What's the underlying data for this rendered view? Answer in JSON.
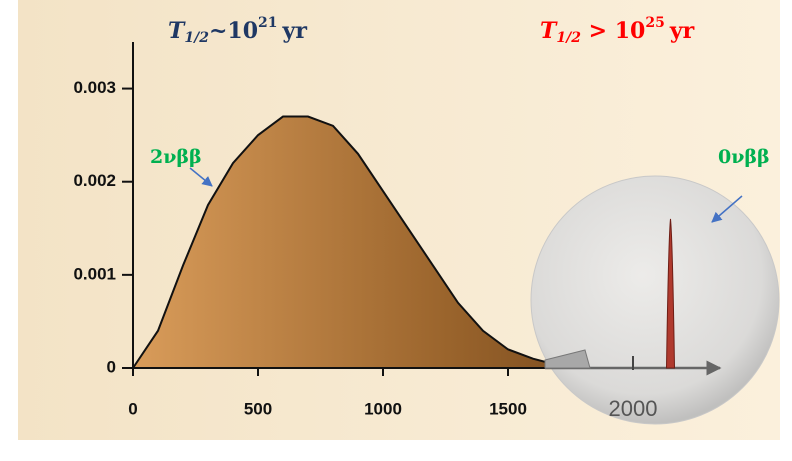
{
  "chart_data": {
    "type": "area",
    "half_lives": [
      {
        "symbol": "T",
        "subscript": "1/2",
        "relation": "~",
        "base": "10",
        "exponent": "21",
        "unit": "yr",
        "color": "#1f3864"
      },
      {
        "symbol": "T",
        "subscript": "1/2",
        "relation": " > ",
        "base": "10",
        "exponent": "25",
        "unit": "yr",
        "color": "#ff0000"
      }
    ],
    "series": [
      {
        "name": "2νββ",
        "color": "#00b050",
        "x": [
          0,
          100,
          200,
          300,
          400,
          500,
          600,
          700,
          800,
          900,
          1000,
          1100,
          1200,
          1300,
          1400,
          1500,
          1600,
          1700,
          1800
        ],
        "values": [
          0,
          0.0004,
          0.0011,
          0.00175,
          0.0022,
          0.0025,
          0.0027,
          0.0027,
          0.0026,
          0.0023,
          0.0019,
          0.0015,
          0.0011,
          0.0007,
          0.0004,
          0.0002,
          0.0001,
          3e-05,
          0
        ]
      },
      {
        "name": "0νββ",
        "color": "#00b050",
        "x": [
          2150
        ],
        "values": [
          0.0016
        ]
      }
    ],
    "xlim": [
      0,
      2350
    ],
    "xticks": [
      0,
      500,
      1000,
      1500,
      2000
    ],
    "ylim": [
      0,
      0.0035
    ],
    "yticks": [
      0,
      0.001,
      0.002,
      0.003
    ]
  }
}
